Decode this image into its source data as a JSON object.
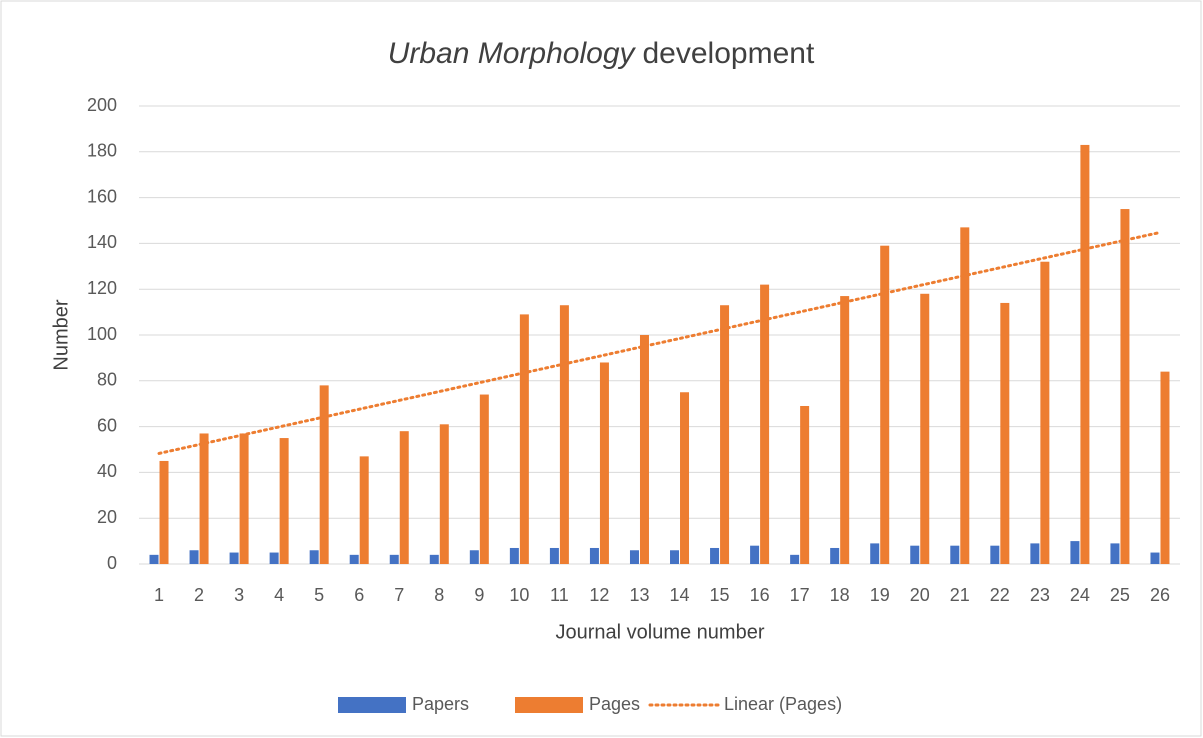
{
  "chart_data": {
    "type": "bar",
    "title": [
      "Urban Morphology",
      "development"
    ],
    "x_label": "Journal volume number",
    "y_label": "Number",
    "categories": [
      "1",
      "2",
      "3",
      "4",
      "5",
      "6",
      "7",
      "8",
      "9",
      "10",
      "11",
      "12",
      "13",
      "14",
      "15",
      "16",
      "17",
      "18",
      "19",
      "20",
      "21",
      "22",
      "23",
      "24",
      "25",
      "26"
    ],
    "series": [
      {
        "name": "Papers",
        "color": "#4472c4",
        "values": [
          4,
          6,
          5,
          5,
          6,
          4,
          4,
          4,
          6,
          7,
          7,
          7,
          6,
          6,
          7,
          8,
          4,
          7,
          9,
          8,
          8,
          8,
          9,
          10,
          9,
          5
        ]
      },
      {
        "name": "Pages",
        "color": "#ed7d31",
        "values": [
          45,
          57,
          57,
          55,
          78,
          47,
          58,
          61,
          74,
          109,
          113,
          88,
          100,
          75,
          113,
          122,
          69,
          117,
          139,
          118,
          147,
          114,
          132,
          183,
          155,
          84
        ]
      }
    ],
    "trendline": {
      "name": "Linear (Pages)",
      "series": 1,
      "color": "#ed7d31",
      "style": "dotted"
    },
    "ylim": [
      0,
      200
    ],
    "yticks": [
      0,
      20,
      40,
      60,
      80,
      100,
      120,
      140,
      160,
      180,
      200
    ],
    "grid": true,
    "legend": "bottom"
  }
}
